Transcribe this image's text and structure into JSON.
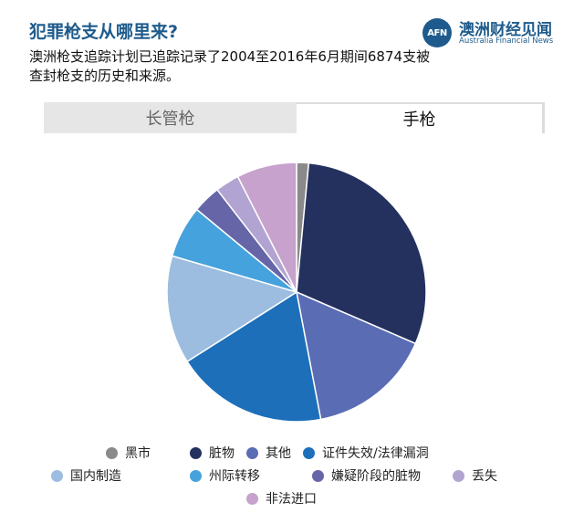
{
  "header": {
    "title": "犯罪枪支从哪里来?",
    "subtitle": "澳洲枪支追踪计划已追踪记录了2004至2016年6月期间6874支被查封枪支的历史和来源。"
  },
  "logo": {
    "mark": "AFN",
    "name_cn": "澳洲财经见闻",
    "name_en": "Australia Financial News"
  },
  "tabs": [
    {
      "label": "长管枪",
      "active": false
    },
    {
      "label": "手枪",
      "active": true
    }
  ],
  "chart_data": {
    "type": "pie",
    "categories": [
      "黑市",
      "脏物",
      "其他",
      "证件失效/法律漏洞",
      "国内制造",
      "州际转移",
      "嫌疑阶段的脏物",
      "丢失",
      "非法进口"
    ],
    "values": [
      1.5,
      30,
      15.5,
      19,
      13.5,
      6.5,
      3.5,
      3,
      7.5
    ],
    "colors": [
      "#8a8a8a",
      "#24315f",
      "#5a6cb3",
      "#1d6fba",
      "#9cbde0",
      "#46a2dc",
      "#6565a8",
      "#b2a4d2",
      "#c6a2cc"
    ]
  }
}
